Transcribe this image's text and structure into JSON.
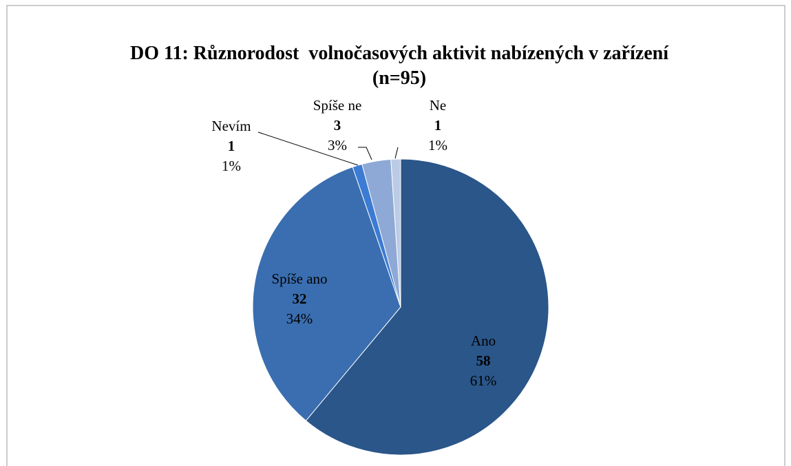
{
  "chart_data": {
    "type": "pie",
    "title": "DO 11: Různorodost  volnočasových aktivit nabízených v zařízení  (n=95)",
    "categories": [
      "Ano",
      "Spíše ano",
      "Nevím",
      "Spíše ne",
      "Ne"
    ],
    "values": [
      58,
      32,
      1,
      3,
      1
    ],
    "percent_labels": [
      "61%",
      "34%",
      "1%",
      "3%",
      "1%"
    ],
    "colors": [
      "#2a5689",
      "#3a6eb0",
      "#3c7bd3",
      "#8ea9d5",
      "#bccbe5"
    ]
  }
}
